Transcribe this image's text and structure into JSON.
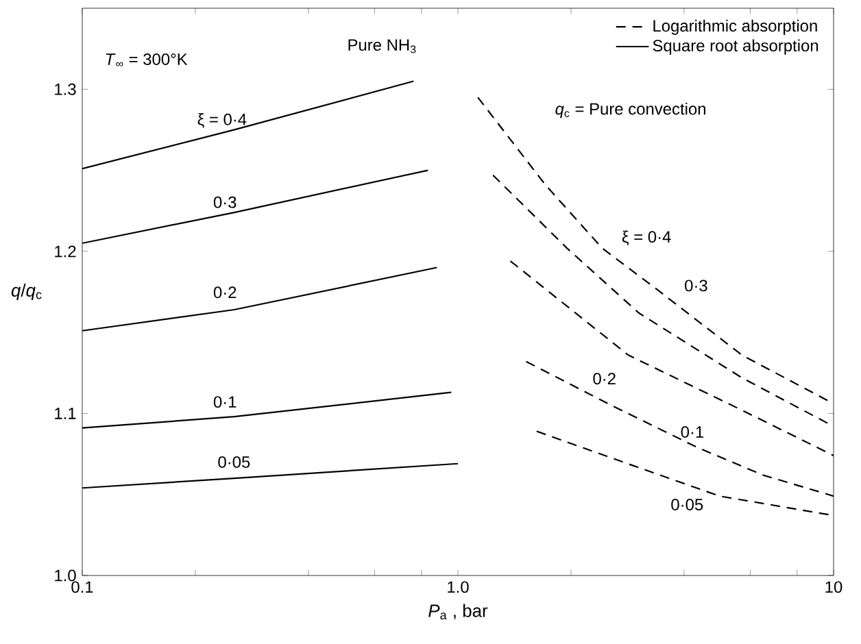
{
  "chart_data": {
    "type": "line",
    "xlabel": "*P*$_{a}$ , bar",
    "ylabel": "*q*/*q*$_{c}$",
    "log": "x",
    "legend": "top right",
    "xlim": [
      0.1,
      10
    ],
    "ylim": [
      1.0,
      1.35
    ],
    "xticks": [
      {
        "value": 0.1,
        "label": "0.1"
      },
      {
        "value": 0.2,
        "label": null
      },
      {
        "value": 0.4,
        "label": null
      },
      {
        "value": 0.6,
        "label": null
      },
      {
        "value": 0.8,
        "label": null
      },
      {
        "value": 1,
        "label": "1.0"
      },
      {
        "value": 2,
        "label": null
      },
      {
        "value": 4,
        "label": null
      },
      {
        "value": 6,
        "label": null
      },
      {
        "value": 8,
        "label": null
      },
      {
        "value": 10,
        "label": "10"
      }
    ],
    "yticks": [
      {
        "value": 1.0,
        "label": "1.0"
      },
      {
        "value": 1.1,
        "label": "1.1"
      },
      {
        "value": 1.2,
        "label": "1.2"
      },
      {
        "value": 1.3,
        "label": "1.3"
      }
    ],
    "series": [
      {
        "name": "Logarithmic absorption",
        "color": "#000000",
        "line_style": "dashed",
        "x": [
          1.13,
          1.71,
          2.42,
          3.41,
          5.7,
          10
        ],
        "values": [
          1.295,
          1.241,
          1.202,
          1.176,
          1.136,
          1.106
        ]
      },
      {
        "name": "Square root absorption",
        "color": "#000000",
        "line_style": "solid",
        "x": [
          0.1,
          0.254,
          0.762
        ],
        "values": [
          1.251,
          1.275,
          1.305
        ]
      },
      {
        "color": "#000000",
        "line_style": "dashed",
        "x": [
          1.24,
          1.95,
          3.03,
          5.7,
          10
        ],
        "values": [
          1.247,
          1.202,
          1.162,
          1.122,
          1.092
        ]
      },
      {
        "color": "#000000",
        "line_style": "dashed",
        "x": [
          1.38,
          2.84,
          5.7,
          10
        ],
        "values": [
          1.194,
          1.136,
          1.102,
          1.074
        ]
      },
      {
        "color": "#000000",
        "line_style": "dashed",
        "x": [
          1.52,
          2.56,
          4.34,
          6.48,
          10
        ],
        "values": [
          1.132,
          1.105,
          1.079,
          1.062,
          1.049
        ]
      },
      {
        "color": "#000000",
        "line_style": "dashed",
        "x": [
          1.62,
          2.91,
          4.97,
          10
        ],
        "values": [
          1.089,
          1.068,
          1.049,
          1.037
        ]
      },
      {
        "color": "#000000",
        "line_style": "solid",
        "x": [
          0.1,
          0.254,
          0.832
        ],
        "values": [
          1.205,
          1.224,
          1.25
        ]
      },
      {
        "color": "#000000",
        "line_style": "solid",
        "x": [
          0.1,
          0.254,
          0.879
        ],
        "values": [
          1.151,
          1.164,
          1.19
        ]
      },
      {
        "color": "#000000",
        "line_style": "solid",
        "x": [
          0.1,
          0.254,
          0.96
        ],
        "values": [
          1.091,
          1.098,
          1.113
        ]
      },
      {
        "color": "#000000",
        "line_style": "solid",
        "x": [
          0.1,
          0.254,
          1.0
        ],
        "values": [
          1.054,
          1.06,
          1.069
        ]
      }
    ],
    "annotations": [
      "*T*$_{∞}$ = 300°K",
      "Pure NH$_{3}$",
      "*q*$_{c}$ = Pure convection",
      "ξ = 0·4",
      "0·3",
      "0·2",
      "0·1",
      "0·05",
      "ξ = 0·4",
      "0·3",
      "0·2",
      "0·1",
      "0·05"
    ]
  }
}
